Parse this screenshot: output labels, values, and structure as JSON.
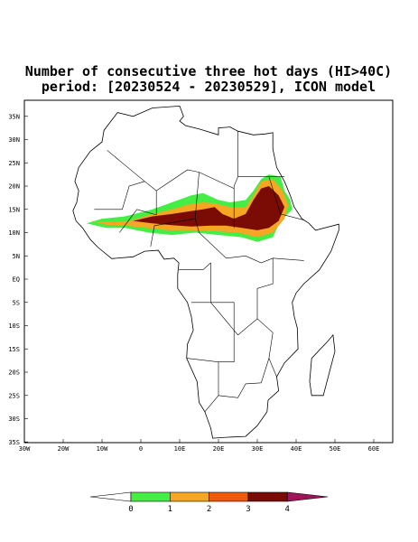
{
  "header": {
    "title": "Number of consecutive three hot days (HI>40C)",
    "subtitle": "period: [20230524 - 20230529], ICON model"
  },
  "map": {
    "lat_labels": [
      "35N",
      "30N",
      "25N",
      "20N",
      "15N",
      "10N",
      "5N",
      "EQ",
      "5S",
      "10S",
      "15S",
      "20S",
      "25S",
      "30S",
      "35S"
    ],
    "lon_labels": [
      "30W",
      "20W",
      "10W",
      "0",
      "10E",
      "20E",
      "30E",
      "40E",
      "50E",
      "60E"
    ]
  },
  "colorbar": {
    "labels": [
      "0",
      "1",
      "2",
      "3",
      "4"
    ],
    "colors": [
      "#ffffff",
      "#44ee44",
      "#f5a623",
      "#f05a0a",
      "#7a0c05",
      "#a0145a"
    ]
  }
}
